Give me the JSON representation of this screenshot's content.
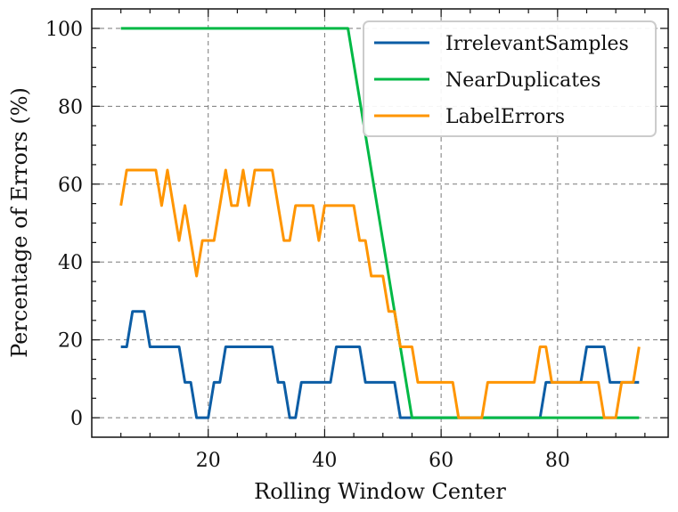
{
  "chart_data": {
    "type": "line",
    "title": "",
    "xlabel": "Rolling Window Center",
    "ylabel": "Percentage of Errors (%)",
    "xlim": [
      0,
      99
    ],
    "ylim": [
      -5,
      105
    ],
    "x_ticks": [
      20,
      40,
      60,
      80
    ],
    "y_ticks": [
      0,
      20,
      40,
      60,
      80,
      100
    ],
    "x_tick_labels": [
      "20",
      "40",
      "60",
      "80"
    ],
    "y_tick_labels": [
      "0",
      "20",
      "40",
      "60",
      "80",
      "100"
    ],
    "grid": true,
    "legend_position": "top-right",
    "series": [
      {
        "name": "IrrelevantSamples",
        "color": "#0c5da5",
        "points": [
          [
            5,
            18.2
          ],
          [
            6,
            18.2
          ],
          [
            7,
            27.3
          ],
          [
            9,
            27.3
          ],
          [
            10,
            18.2
          ],
          [
            15,
            18.2
          ],
          [
            16,
            9.1
          ],
          [
            17,
            9.1
          ],
          [
            18,
            0
          ],
          [
            20,
            0
          ],
          [
            21,
            9.1
          ],
          [
            22,
            9.1
          ],
          [
            23,
            18.2
          ],
          [
            31,
            18.2
          ],
          [
            32,
            9.1
          ],
          [
            33,
            9.1
          ],
          [
            34,
            0
          ],
          [
            35,
            0
          ],
          [
            36,
            9.1
          ],
          [
            41,
            9.1
          ],
          [
            42,
            18.2
          ],
          [
            46,
            18.2
          ],
          [
            47,
            9.1
          ],
          [
            52,
            9.1
          ],
          [
            53,
            0
          ],
          [
            77,
            0
          ],
          [
            78,
            9.1
          ],
          [
            84,
            9.1
          ],
          [
            85,
            18.2
          ],
          [
            88,
            18.2
          ],
          [
            89,
            9.1
          ],
          [
            94,
            9.1
          ]
        ]
      },
      {
        "name": "NearDuplicates",
        "color": "#00b945",
        "points": [
          [
            5,
            100
          ],
          [
            44,
            100
          ],
          [
            55,
            0
          ],
          [
            94,
            0
          ]
        ]
      },
      {
        "name": "LabelErrors",
        "color": "#ff9500",
        "points": [
          [
            5,
            54.5
          ],
          [
            6,
            63.6
          ],
          [
            11,
            63.6
          ],
          [
            12,
            54.5
          ],
          [
            13,
            63.6
          ],
          [
            14,
            54.5
          ],
          [
            15,
            45.5
          ],
          [
            16,
            54.5
          ],
          [
            17,
            45.5
          ],
          [
            18,
            36.4
          ],
          [
            19,
            45.5
          ],
          [
            21,
            45.5
          ],
          [
            22,
            54.5
          ],
          [
            23,
            63.6
          ],
          [
            24,
            54.5
          ],
          [
            25,
            54.5
          ],
          [
            26,
            63.6
          ],
          [
            27,
            54.5
          ],
          [
            28,
            63.6
          ],
          [
            31,
            63.6
          ],
          [
            32,
            54.5
          ],
          [
            33,
            45.5
          ],
          [
            34,
            45.5
          ],
          [
            35,
            54.5
          ],
          [
            38,
            54.5
          ],
          [
            39,
            45.5
          ],
          [
            40,
            54.5
          ],
          [
            45,
            54.5
          ],
          [
            46,
            45.5
          ],
          [
            47,
            45.5
          ],
          [
            48,
            36.4
          ],
          [
            50,
            36.4
          ],
          [
            51,
            27.3
          ],
          [
            52,
            27.3
          ],
          [
            53,
            18.2
          ],
          [
            55,
            18.2
          ],
          [
            56,
            9.1
          ],
          [
            62,
            9.1
          ],
          [
            63,
            0
          ],
          [
            67,
            0
          ],
          [
            68,
            9.1
          ],
          [
            76,
            9.1
          ],
          [
            77,
            18.2
          ],
          [
            78,
            18.2
          ],
          [
            79,
            9.1
          ],
          [
            87,
            9.1
          ],
          [
            88,
            0
          ],
          [
            90,
            0
          ],
          [
            91,
            9.1
          ],
          [
            93,
            9.1
          ],
          [
            94,
            18.2
          ]
        ]
      }
    ]
  }
}
